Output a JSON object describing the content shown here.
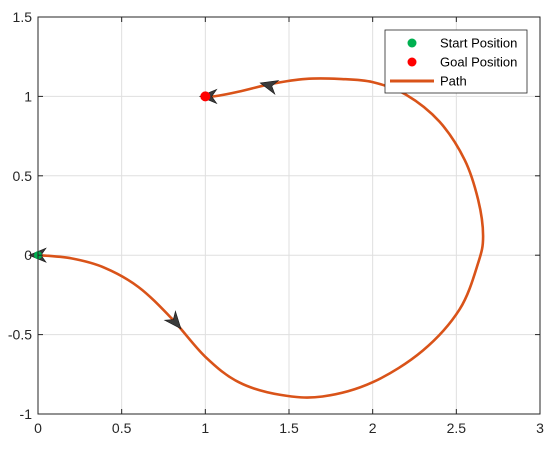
{
  "chart_data": {
    "type": "line",
    "title": "",
    "xlabel": "",
    "ylabel": "",
    "xlim": [
      0,
      3
    ],
    "ylim": [
      -1,
      1.5
    ],
    "grid": true,
    "legend_position": "top-right",
    "x_ticks": [
      {
        "value": 0,
        "label": "0"
      },
      {
        "value": 0.5,
        "label": "0.5"
      },
      {
        "value": 1,
        "label": "1"
      },
      {
        "value": 1.5,
        "label": "1.5"
      },
      {
        "value": 2,
        "label": "2"
      },
      {
        "value": 2.5,
        "label": "2.5"
      },
      {
        "value": 3,
        "label": "3"
      }
    ],
    "y_ticks": [
      {
        "value": -1,
        "label": "-1"
      },
      {
        "value": -0.5,
        "label": "-0.5"
      },
      {
        "value": 0,
        "label": "0"
      },
      {
        "value": 0.5,
        "label": "0.5"
      },
      {
        "value": 1,
        "label": "1"
      },
      {
        "value": 1.5,
        "label": "1.5"
      }
    ],
    "legend": [
      {
        "label": "Start Position",
        "kind": "marker",
        "color": "#00B050"
      },
      {
        "label": "Goal Position",
        "kind": "marker",
        "color": "#FF0000"
      },
      {
        "label": "Path",
        "kind": "line",
        "color": "#D95319"
      }
    ],
    "start": {
      "x": 0,
      "y": 0
    },
    "goal": {
      "x": 1,
      "y": 1
    },
    "series": [
      {
        "name": "Path",
        "color": "#D95319",
        "points": [
          {
            "x": 0.0,
            "y": 0.0
          },
          {
            "x": 0.2,
            "y": -0.02
          },
          {
            "x": 0.4,
            "y": -0.08
          },
          {
            "x": 0.6,
            "y": -0.2
          },
          {
            "x": 0.8,
            "y": -0.4
          },
          {
            "x": 1.0,
            "y": -0.64
          },
          {
            "x": 1.2,
            "y": -0.8
          },
          {
            "x": 1.45,
            "y": -0.88
          },
          {
            "x": 1.7,
            "y": -0.89
          },
          {
            "x": 2.0,
            "y": -0.8
          },
          {
            "x": 2.3,
            "y": -0.6
          },
          {
            "x": 2.52,
            "y": -0.34
          },
          {
            "x": 2.63,
            "y": -0.05
          },
          {
            "x": 2.66,
            "y": 0.12
          },
          {
            "x": 2.63,
            "y": 0.35
          },
          {
            "x": 2.55,
            "y": 0.6
          },
          {
            "x": 2.4,
            "y": 0.84
          },
          {
            "x": 2.2,
            "y": 1.01
          },
          {
            "x": 2.0,
            "y": 1.09
          },
          {
            "x": 1.8,
            "y": 1.11
          },
          {
            "x": 1.6,
            "y": 1.11
          },
          {
            "x": 1.4,
            "y": 1.08
          },
          {
            "x": 1.2,
            "y": 1.03
          },
          {
            "x": 1.05,
            "y": 1.0
          },
          {
            "x": 1.0,
            "y": 1.0
          }
        ]
      }
    ],
    "direction_markers": [
      {
        "x": 0.0,
        "y": 0.0,
        "angle_deg": 180
      },
      {
        "x": 0.82,
        "y": -0.42,
        "angle_deg": -50
      },
      {
        "x": 1.38,
        "y": 1.07,
        "angle_deg": 165
      },
      {
        "x": 1.02,
        "y": 1.0,
        "angle_deg": 180
      }
    ],
    "marker_color": "#3a3a3a"
  }
}
